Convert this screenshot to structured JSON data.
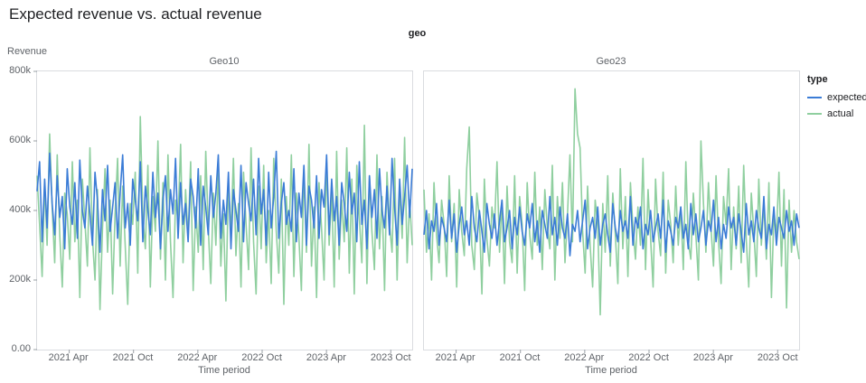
{
  "chart_data": {
    "type": "line",
    "title": "Expected revenue vs. actual revenue",
    "facet_field": "geo",
    "facet_titles": [
      "Geo10",
      "Geo23"
    ],
    "xlabel": "Time period",
    "ylabel": "Revenue",
    "legend_title": "type",
    "series_names": [
      "expected",
      "actual"
    ],
    "colors": {
      "expected": "#3b7cd6",
      "actual": "#8fcf9f"
    },
    "y_units": "thousands",
    "y_domain": [
      0,
      800
    ],
    "y_ticks": [
      {
        "label": "800k",
        "value": 800
      },
      {
        "label": "600k",
        "value": 600
      },
      {
        "label": "400k",
        "value": 400
      },
      {
        "label": "200k",
        "value": 200
      },
      {
        "label": "0.00",
        "value": 0
      }
    ],
    "x_domain_months": 36,
    "x_ticks": [
      {
        "label": "2021 Apr",
        "month": 3
      },
      {
        "label": "2021 Oct",
        "month": 9
      },
      {
        "label": "2022 Apr",
        "month": 15
      },
      {
        "label": "2022 Oct",
        "month": 21
      },
      {
        "label": "2023 Apr",
        "month": 27
      },
      {
        "label": "2023 Oct",
        "month": 33
      }
    ],
    "facets": [
      {
        "title": "Geo10",
        "expected": [
          455,
          540,
          310,
          490,
          350,
          565,
          420,
          330,
          500,
          380,
          440,
          290,
          520,
          410,
          360,
          480,
          320,
          545,
          400,
          350,
          470,
          390,
          300,
          510,
          430,
          280,
          460,
          370,
          530,
          340,
          410,
          480,
          320,
          450,
          560,
          350,
          420,
          300,
          490,
          430,
          370,
          540,
          310,
          470,
          400,
          330,
          510,
          380,
          450,
          290,
          430,
          500,
          340,
          460,
          390,
          550,
          320,
          480,
          360,
          420,
          310,
          490,
          440,
          350,
          520,
          300,
          470,
          410,
          330,
          500,
          380,
          450,
          560,
          320,
          430,
          360,
          510,
          290,
          460,
          400,
          340,
          530,
          310,
          480,
          420,
          370,
          490,
          330,
          550,
          390,
          460,
          300,
          510,
          350,
          440,
          570,
          320,
          420,
          480,
          360,
          400,
          340,
          520,
          310,
          450,
          380,
          530,
          300,
          470,
          430,
          350,
          500,
          320,
          460,
          410,
          560,
          330,
          490,
          370,
          440,
          300,
          480,
          420,
          340,
          510,
          390,
          450,
          310,
          540,
          360,
          430,
          290,
          500,
          380,
          460,
          320,
          520,
          400,
          350,
          470,
          330,
          550,
          410,
          300,
          490,
          360,
          440,
          530,
          380,
          520
        ],
        "actual": [
          500,
          360,
          210,
          480,
          300,
          620,
          410,
          250,
          560,
          330,
          180,
          450,
          390,
          260,
          540,
          310,
          430,
          150,
          490,
          370,
          240,
          580,
          320,
          200,
          460,
          115,
          350,
          520,
          280,
          430,
          160,
          390,
          550,
          240,
          470,
          300,
          130,
          420,
          360,
          510,
          220,
          670,
          380,
          290,
          530,
          180,
          440,
          340,
          600,
          260,
          480,
          200,
          560,
          310,
          150,
          430,
          370,
          590,
          250,
          460,
          320,
          540,
          170,
          410,
          280,
          500,
          230,
          570,
          350,
          190,
          450,
          300,
          520,
          240,
          390,
          140,
          480,
          330,
          550,
          270,
          420,
          180,
          510,
          360,
          230,
          580,
          310,
          160,
          470,
          290,
          530,
          250,
          400,
          190,
          550,
          340,
          220,
          490,
          130,
          440,
          300,
          560,
          210,
          450,
          320,
          170,
          520,
          280,
          590,
          240,
          410,
          150,
          480,
          350,
          200,
          540,
          300,
          460,
          180,
          570,
          260,
          430,
          310,
          580,
          220,
          490,
          160,
          530,
          380,
          250,
          645,
          190,
          500,
          340,
          230,
          560,
          290,
          440,
          170,
          510,
          360,
          280,
          550,
          200,
          470,
          320,
          610,
          250,
          430,
          300
        ]
      },
      {
        "title": "Geo23",
        "expected": [
          330,
          400,
          290,
          370,
          340,
          420,
          300,
          380,
          350,
          310,
          430,
          320,
          390,
          280,
          360,
          410,
          330,
          370,
          300,
          440,
          350,
          310,
          400,
          340,
          280,
          420,
          360,
          320,
          390,
          300,
          370,
          430,
          310,
          350,
          400,
          290,
          380,
          330,
          410,
          340,
          300,
          390,
          350,
          420,
          310,
          370,
          280,
          400,
          360,
          320,
          440,
          330,
          380,
          300,
          410,
          350,
          320,
          390,
          270,
          360,
          340,
          400,
          310,
          370,
          430,
          290,
          350,
          380,
          320,
          410,
          300,
          360,
          390,
          330,
          280,
          420,
          350,
          310,
          400,
          340,
          370,
          320,
          440,
          300,
          380,
          350,
          410,
          290,
          360,
          330,
          400,
          310,
          350,
          390,
          320,
          430,
          280,
          370,
          340,
          300,
          380,
          350,
          410,
          320,
          360,
          290,
          420,
          330,
          390,
          310,
          350,
          400,
          300,
          370,
          340,
          430,
          310,
          380,
          290,
          360,
          320,
          410,
          350,
          380,
          300,
          390,
          340,
          280,
          420,
          330,
          370,
          310,
          400,
          350,
          320,
          440,
          290,
          360,
          330,
          410,
          300,
          380,
          350,
          320,
          400,
          340,
          370,
          300,
          390,
          350
        ],
        "actual": [
          460,
          280,
          390,
          200,
          480,
          330,
          250,
          430,
          360,
          210,
          500,
          310,
          420,
          180,
          460,
          340,
          270,
          520,
          640,
          300,
          230,
          450,
          380,
          160,
          490,
          320,
          240,
          410,
          350,
          540,
          280,
          430,
          190,
          470,
          310,
          250,
          500,
          220,
          440,
          360,
          170,
          480,
          330,
          260,
          510,
          300,
          410,
          230,
          460,
          350,
          290,
          530,
          200,
          440,
          320,
          480,
          250,
          390,
          560,
          310,
          750,
          620,
          580,
          340,
          220,
          470,
          300,
          180,
          430,
          360,
          100,
          420,
          280,
          500,
          240,
          450,
          330,
          190,
          520,
          290,
          440,
          210,
          480,
          350,
          260,
          410,
          300,
          550,
          230,
          460,
          320,
          180,
          490,
          340,
          270,
          510,
          220,
          430,
          360,
          250,
          470,
          300,
          410,
          230,
          540,
          310,
          260,
          450,
          330,
          200,
          600,
          420,
          280,
          480,
          350,
          240,
          500,
          310,
          190,
          440,
          360,
          520,
          230,
          410,
          290,
          470,
          250,
          530,
          320,
          180,
          450,
          340,
          210,
          490,
          300,
          420,
          260,
          480,
          150,
          390,
          330,
          510,
          240,
          460,
          120,
          430,
          280,
          400,
          310,
          260
        ]
      }
    ]
  }
}
